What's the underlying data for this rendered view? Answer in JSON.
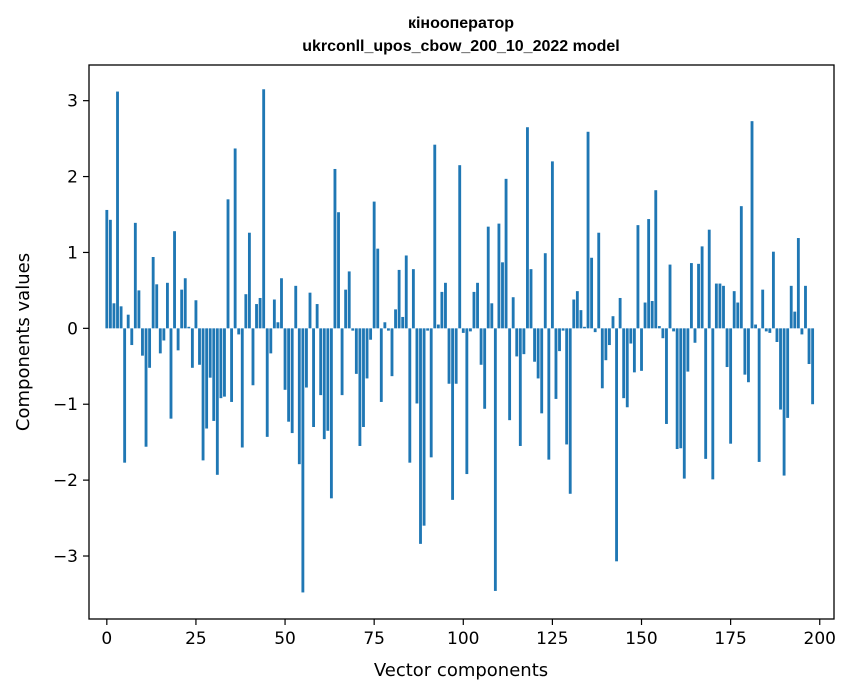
{
  "chart_data": {
    "type": "bar",
    "title": "кінооператор",
    "subtitle": "ukrconll_upos_cbow_200_10_2022 model",
    "xlabel": "Vector components",
    "ylabel": "Components values",
    "xlim": [
      -5,
      204
    ],
    "ylim": [
      -3.83,
      3.47
    ],
    "xticks": [
      0,
      25,
      50,
      75,
      100,
      125,
      150,
      175,
      200
    ],
    "yticks": [
      -3,
      -2,
      -1,
      0,
      1,
      2,
      3
    ],
    "ytick_labels": [
      "−3",
      "−2",
      "−1",
      "0",
      "1",
      "2",
      "3"
    ],
    "grid": false,
    "legend": "none",
    "bar_color": "#1f77b4",
    "values": [
      1.56,
      1.43,
      0.33,
      3.12,
      0.29,
      -1.77,
      0.18,
      -0.22,
      1.39,
      0.5,
      -0.36,
      -1.56,
      -0.52,
      0.94,
      0.58,
      -0.33,
      -0.16,
      0.6,
      -1.19,
      1.28,
      -0.29,
      0.51,
      0.66,
      0.02,
      -0.52,
      0.37,
      -0.48,
      -1.74,
      -1.32,
      -0.65,
      -1.22,
      -1.93,
      -0.92,
      -0.9,
      1.7,
      -0.97,
      2.37,
      -0.08,
      -1.57,
      0.45,
      1.26,
      -0.75,
      0.32,
      0.4,
      3.15,
      -1.43,
      -0.33,
      0.38,
      0.08,
      0.66,
      -0.81,
      -1.23,
      -1.38,
      0.56,
      -1.79,
      -3.48,
      -0.78,
      0.47,
      -1.3,
      0.32,
      -0.88,
      -1.46,
      -1.35,
      -2.24,
      2.1,
      1.53,
      -0.88,
      0.51,
      0.75,
      -0.03,
      -0.6,
      -1.55,
      -1.3,
      -0.66,
      -0.15,
      1.67,
      1.05,
      -0.97,
      0.08,
      -0.03,
      -0.63,
      0.25,
      0.77,
      0.15,
      0.96,
      -1.77,
      0.78,
      -0.99,
      -2.84,
      -2.6,
      -0.03,
      -1.7,
      2.42,
      0.05,
      0.48,
      0.6,
      -0.73,
      -2.26,
      -0.73,
      2.15,
      -0.06,
      -1.92,
      -0.04,
      0.48,
      0.6,
      -0.48,
      -1.06,
      1.34,
      0.33,
      -3.46,
      1.38,
      0.87,
      1.97,
      -1.21,
      0.41,
      -0.37,
      -1.55,
      -0.34,
      2.65,
      0.78,
      -0.44,
      -0.66,
      -1.12,
      0.99,
      -1.73,
      2.2,
      -0.93,
      -0.3,
      -0.03,
      -1.53,
      -2.18,
      0.38,
      0.49,
      0.24,
      0.02,
      2.59,
      0.93,
      -0.05,
      1.26,
      -0.79,
      -0.42,
      -0.22,
      0.16,
      -3.07,
      0.4,
      -0.92,
      -1.04,
      -0.2,
      -0.58,
      1.36,
      -0.56,
      0.34,
      1.44,
      0.36,
      1.82,
      0.03,
      -0.13,
      -1.26,
      0.84,
      -0.04,
      -1.59,
      -1.58,
      -1.98,
      -0.57,
      0.86,
      -0.19,
      0.85,
      1.08,
      -1.72,
      1.3,
      -1.99,
      0.59,
      0.59,
      0.56,
      -0.51,
      -1.52,
      0.49,
      0.34,
      1.61,
      -0.61,
      -0.71,
      2.73,
      0.05,
      -1.76,
      0.51,
      -0.04,
      -0.06,
      1.01,
      -0.18,
      -1.07,
      -1.94,
      -1.18,
      0.56,
      0.22,
      1.19,
      -0.08,
      0.56,
      -0.47,
      -1.0
    ]
  }
}
